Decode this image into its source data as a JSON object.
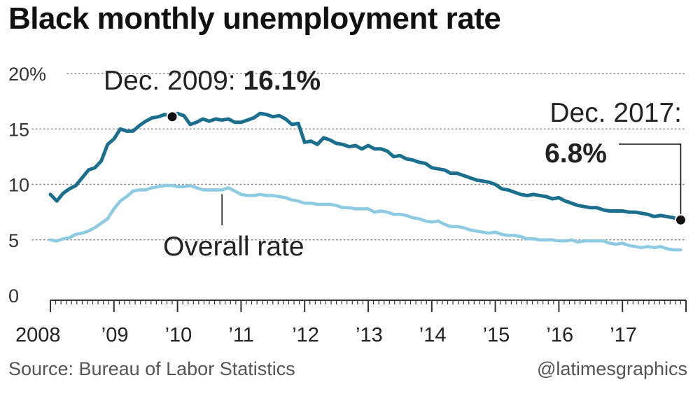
{
  "title": "Black monthly unemployment rate",
  "source": "Source: Bureau of Labor Statistics",
  "credit": "@latimesgraphics",
  "colors": {
    "black_rate": "#1a6e8e",
    "overall_rate": "#8ccbe2",
    "grid": "#888888",
    "text": "#222222"
  },
  "annotations": {
    "peak_label": "Dec. 2009: ",
    "peak_value": "16.1%",
    "latest_label": "Dec. 2017:",
    "latest_value": "6.8%",
    "overall_label": "Overall rate"
  },
  "chart_data": {
    "type": "line",
    "title": "Black monthly unemployment rate",
    "xlabel": "",
    "ylabel": "",
    "ylim": [
      0,
      20
    ],
    "xlim": [
      2008,
      2018
    ],
    "grid": true,
    "y_ticks": [
      0,
      5,
      10,
      15,
      20
    ],
    "y_tick_labels": [
      "0",
      "5",
      "10",
      "15",
      "20%"
    ],
    "x_ticks": [
      2008,
      2009,
      2010,
      2011,
      2012,
      2013,
      2014,
      2015,
      2016,
      2017
    ],
    "x_tick_labels": [
      "2008",
      "’09",
      "’10",
      "’11",
      "’12",
      "’13",
      "’14",
      "’15",
      "’16",
      "’17"
    ],
    "series": [
      {
        "name": "",
        "x": [
          2008.0,
          2008.1,
          2008.2,
          2008.3,
          2008.4,
          2008.5,
          2008.6,
          2008.7,
          2008.8,
          2008.9,
          2009.0,
          2009.1,
          2009.2,
          2009.3,
          2009.4,
          2009.5,
          2009.6,
          2009.7,
          2009.8,
          2009.917,
          2010.0,
          2010.1,
          2010.2,
          2010.3,
          2010.4,
          2010.5,
          2010.6,
          2010.7,
          2010.8,
          2010.9,
          2011.0,
          2011.1,
          2011.2,
          2011.3,
          2011.4,
          2011.5,
          2011.6,
          2011.7,
          2011.8,
          2011.9,
          2012.0,
          2012.1,
          2012.2,
          2012.3,
          2012.4,
          2012.5,
          2012.6,
          2012.7,
          2012.8,
          2012.9,
          2013.0,
          2013.1,
          2013.2,
          2013.3,
          2013.4,
          2013.5,
          2013.6,
          2013.7,
          2013.8,
          2013.9,
          2014.0,
          2014.1,
          2014.2,
          2014.3,
          2014.4,
          2014.5,
          2014.6,
          2014.7,
          2014.8,
          2014.9,
          2015.0,
          2015.1,
          2015.2,
          2015.3,
          2015.4,
          2015.5,
          2015.6,
          2015.7,
          2015.8,
          2015.9,
          2016.0,
          2016.1,
          2016.2,
          2016.3,
          2016.4,
          2016.5,
          2016.6,
          2016.7,
          2016.8,
          2016.9,
          2017.0,
          2017.1,
          2017.2,
          2017.3,
          2017.4,
          2017.5,
          2017.6,
          2017.7,
          2017.8,
          2017.917
        ],
        "values": [
          9.1,
          8.5,
          9.2,
          9.6,
          9.9,
          10.6,
          11.3,
          11.5,
          12.1,
          13.6,
          14.1,
          15.0,
          14.8,
          14.8,
          15.3,
          15.7,
          16.0,
          16.1,
          16.3,
          16.1,
          16.4,
          16.2,
          15.4,
          15.6,
          15.9,
          15.7,
          15.9,
          15.8,
          15.9,
          15.6,
          15.6,
          15.8,
          16.0,
          16.4,
          16.3,
          16.1,
          16.2,
          15.9,
          15.4,
          15.5,
          13.8,
          13.9,
          13.6,
          14.2,
          14.0,
          13.7,
          13.6,
          13.4,
          13.5,
          13.2,
          13.5,
          13.2,
          13.2,
          13.0,
          12.5,
          12.6,
          12.3,
          12.2,
          12.0,
          11.9,
          11.5,
          11.4,
          11.3,
          11.0,
          11.0,
          10.8,
          10.6,
          10.4,
          10.3,
          10.2,
          10.0,
          9.6,
          9.5,
          9.3,
          9.1,
          9.0,
          9.1,
          9.0,
          8.9,
          8.7,
          8.8,
          8.5,
          8.3,
          8.1,
          8.0,
          7.9,
          7.9,
          7.7,
          7.6,
          7.6,
          7.6,
          7.5,
          7.5,
          7.4,
          7.3,
          7.1,
          7.2,
          7.1,
          7.0,
          6.8
        ]
      },
      {
        "name": "Overall rate",
        "x": [
          2008.0,
          2008.1,
          2008.2,
          2008.3,
          2008.4,
          2008.5,
          2008.6,
          2008.7,
          2008.8,
          2008.9,
          2009.0,
          2009.1,
          2009.2,
          2009.3,
          2009.4,
          2009.5,
          2009.6,
          2009.7,
          2009.8,
          2009.917,
          2010.0,
          2010.1,
          2010.2,
          2010.3,
          2010.4,
          2010.5,
          2010.6,
          2010.7,
          2010.8,
          2010.9,
          2011.0,
          2011.1,
          2011.2,
          2011.3,
          2011.4,
          2011.5,
          2011.6,
          2011.7,
          2011.8,
          2011.9,
          2012.0,
          2012.1,
          2012.2,
          2012.3,
          2012.4,
          2012.5,
          2012.6,
          2012.7,
          2012.8,
          2012.9,
          2013.0,
          2013.1,
          2013.2,
          2013.3,
          2013.4,
          2013.5,
          2013.6,
          2013.7,
          2013.8,
          2013.9,
          2014.0,
          2014.1,
          2014.2,
          2014.3,
          2014.4,
          2014.5,
          2014.6,
          2014.7,
          2014.8,
          2014.9,
          2015.0,
          2015.1,
          2015.2,
          2015.3,
          2015.4,
          2015.5,
          2015.6,
          2015.7,
          2015.8,
          2015.9,
          2016.0,
          2016.1,
          2016.2,
          2016.3,
          2016.4,
          2016.5,
          2016.6,
          2016.7,
          2016.8,
          2016.9,
          2017.0,
          2017.1,
          2017.2,
          2017.3,
          2017.4,
          2017.5,
          2017.6,
          2017.7,
          2017.8,
          2017.917
        ],
        "values": [
          5.0,
          4.9,
          5.1,
          5.2,
          5.5,
          5.6,
          5.8,
          6.1,
          6.5,
          6.9,
          7.8,
          8.5,
          8.9,
          9.4,
          9.5,
          9.5,
          9.7,
          9.8,
          9.9,
          9.9,
          9.8,
          9.8,
          9.9,
          9.7,
          9.5,
          9.5,
          9.5,
          9.5,
          9.7,
          9.4,
          9.1,
          9.0,
          9.0,
          9.1,
          9.0,
          9.0,
          8.9,
          8.8,
          8.6,
          8.5,
          8.3,
          8.3,
          8.2,
          8.2,
          8.2,
          8.1,
          7.9,
          7.9,
          7.8,
          7.8,
          7.8,
          7.5,
          7.6,
          7.5,
          7.3,
          7.3,
          7.2,
          7.0,
          6.9,
          6.7,
          6.6,
          6.7,
          6.4,
          6.2,
          6.2,
          6.1,
          5.9,
          5.8,
          5.7,
          5.6,
          5.7,
          5.5,
          5.4,
          5.4,
          5.3,
          5.1,
          5.1,
          5.0,
          5.0,
          5.0,
          4.9,
          4.9,
          5.0,
          4.8,
          4.9,
          4.9,
          4.9,
          4.9,
          4.7,
          4.6,
          4.7,
          4.5,
          4.4,
          4.3,
          4.4,
          4.3,
          4.4,
          4.2,
          4.1,
          4.1
        ]
      }
    ]
  }
}
